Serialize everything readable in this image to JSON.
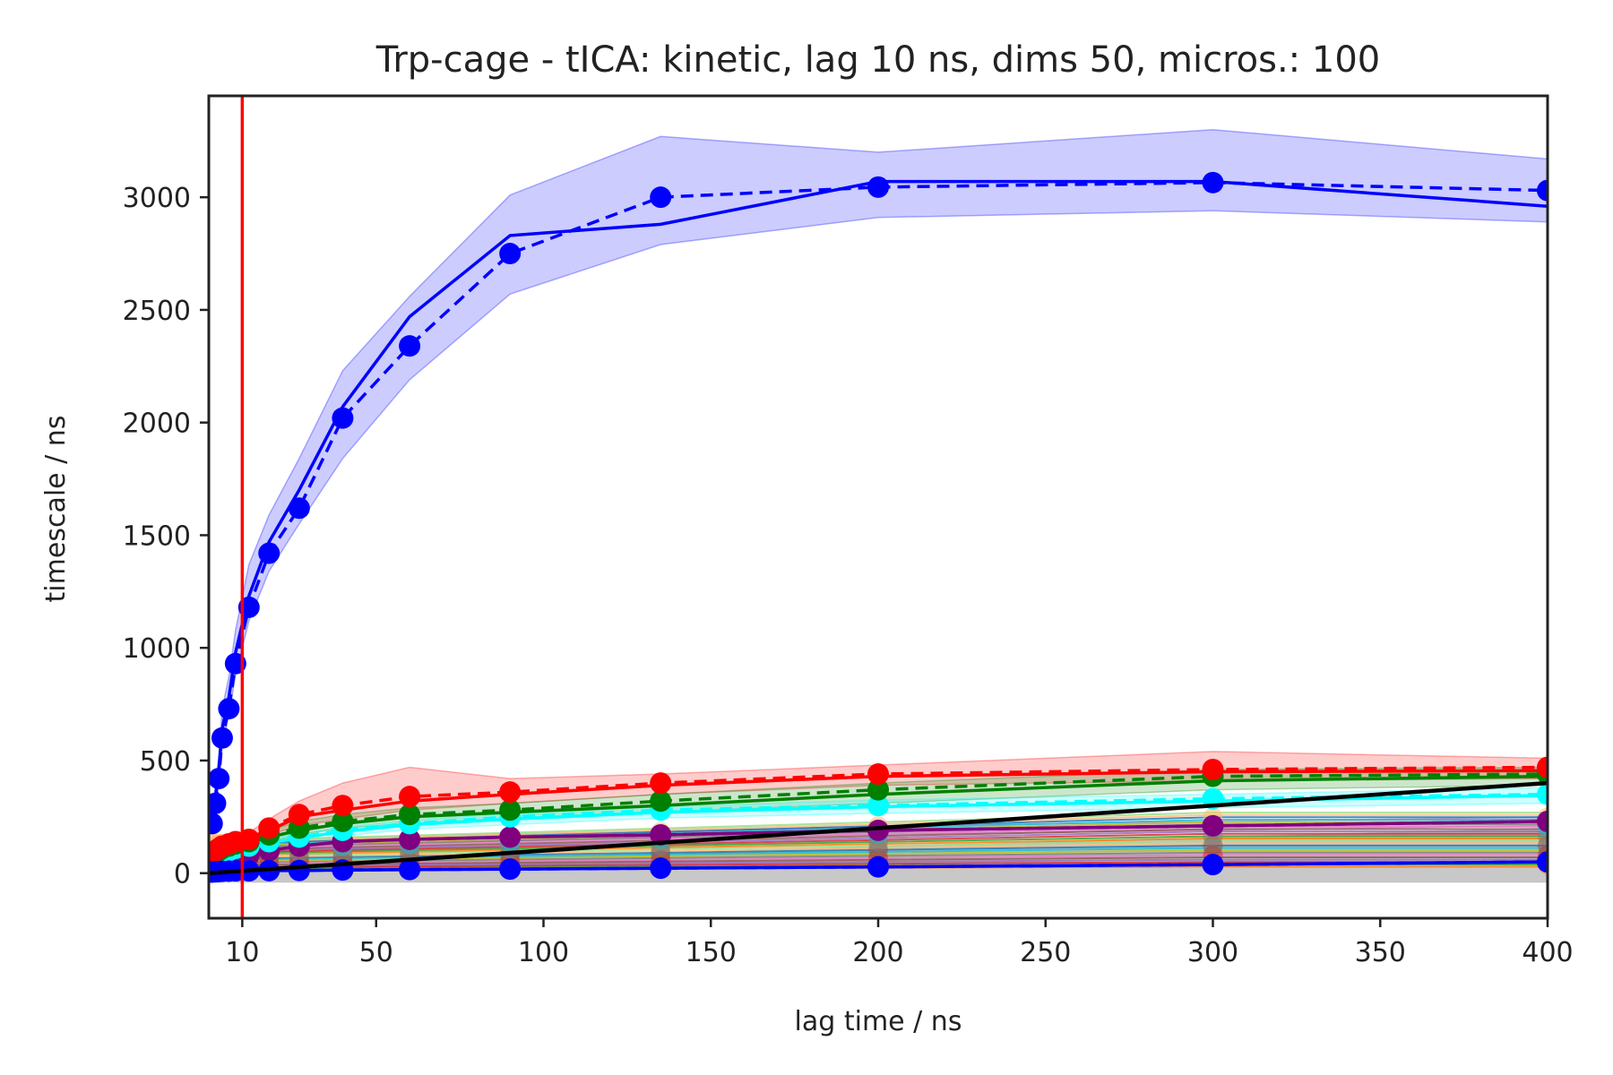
{
  "chart_data": {
    "type": "line",
    "title": "Trp-cage - tICA: kinetic, lag 10 ns, dims 50, micros.: 100",
    "xlabel": "lag time / ns",
    "ylabel": "timescale / ns",
    "xlim": [
      0,
      400
    ],
    "ylim": [
      -200,
      3450
    ],
    "x_ticks": [
      10,
      50,
      100,
      150,
      200,
      250,
      300,
      350,
      400
    ],
    "y_ticks": [
      0,
      500,
      1000,
      1500,
      2000,
      2500,
      3000
    ],
    "grid": false,
    "legend": "none",
    "lag_marker": {
      "x": 10,
      "color": "#ff0000"
    },
    "x": [
      1,
      2,
      3,
      4,
      6,
      8,
      12,
      18,
      27,
      40,
      60,
      90,
      135,
      200,
      300,
      400
    ],
    "series": [
      {
        "color": "#0000ff",
        "values": [
          220,
          310,
          420,
          600,
          730,
          930,
          1180,
          1420,
          1620,
          2020,
          2340,
          2750,
          3000,
          3045,
          3065,
          3030
        ],
        "mean_values": [
          250,
          340,
          460,
          640,
          780,
          980,
          1230,
          1470,
          1700,
          2070,
          2470,
          2830,
          2880,
          3070,
          3070,
          2960
        ],
        "band_low": [
          200,
          290,
          390,
          560,
          700,
          880,
          1120,
          1340,
          1550,
          1840,
          2190,
          2570,
          2790,
          2910,
          2940,
          2890
        ],
        "band_high": [
          300,
          390,
          520,
          730,
          870,
          1080,
          1370,
          1590,
          1840,
          2230,
          2560,
          3010,
          3270,
          3200,
          3300,
          3170
        ]
      },
      {
        "color": "#ff0000",
        "values": [
          90,
          100,
          110,
          120,
          130,
          140,
          150,
          200,
          260,
          300,
          340,
          360,
          400,
          440,
          460,
          470
        ],
        "mean_values": [
          85,
          95,
          105,
          115,
          125,
          135,
          145,
          190,
          250,
          280,
          320,
          350,
          390,
          430,
          450,
          455
        ],
        "band_low": [
          70,
          80,
          90,
          100,
          110,
          120,
          130,
          170,
          210,
          240,
          280,
          310,
          350,
          390,
          410,
          420
        ],
        "band_high": [
          110,
          120,
          130,
          140,
          150,
          160,
          180,
          240,
          320,
          400,
          470,
          420,
          440,
          480,
          540,
          510
        ]
      },
      {
        "color": "#008000",
        "values": [
          80,
          90,
          100,
          110,
          120,
          130,
          140,
          170,
          200,
          230,
          260,
          280,
          320,
          370,
          430,
          440
        ],
        "mean_values": [
          75,
          85,
          95,
          105,
          115,
          125,
          135,
          160,
          190,
          220,
          250,
          270,
          300,
          350,
          410,
          430
        ],
        "band_low": [
          60,
          70,
          80,
          90,
          100,
          110,
          120,
          140,
          170,
          200,
          220,
          240,
          270,
          310,
          370,
          390
        ],
        "band_high": [
          100,
          110,
          120,
          130,
          140,
          150,
          160,
          190,
          230,
          260,
          290,
          310,
          350,
          400,
          460,
          470
        ]
      },
      {
        "color": "#00ffff",
        "values": [
          60,
          70,
          80,
          90,
          100,
          110,
          120,
          140,
          160,
          190,
          220,
          250,
          280,
          300,
          330,
          350
        ],
        "mean_values": [
          58,
          68,
          78,
          88,
          98,
          108,
          118,
          135,
          155,
          185,
          215,
          240,
          270,
          295,
          320,
          345
        ],
        "band_low": [
          45,
          55,
          65,
          75,
          85,
          95,
          105,
          120,
          140,
          165,
          195,
          215,
          245,
          265,
          290,
          310
        ],
        "band_high": [
          75,
          85,
          95,
          105,
          115,
          125,
          135,
          155,
          175,
          205,
          235,
          265,
          295,
          325,
          350,
          380
        ]
      },
      {
        "color": "#800080",
        "values": [
          40,
          45,
          50,
          55,
          60,
          70,
          80,
          100,
          120,
          140,
          150,
          160,
          170,
          190,
          210,
          230
        ],
        "mean_values": [
          40,
          45,
          50,
          55,
          60,
          70,
          80,
          100,
          120,
          140,
          150,
          160,
          170,
          190,
          210,
          230
        ],
        "band_low": [
          30,
          35,
          40,
          45,
          50,
          60,
          70,
          85,
          105,
          125,
          135,
          145,
          155,
          170,
          190,
          210
        ],
        "band_high": [
          50,
          55,
          60,
          65,
          70,
          80,
          90,
          115,
          135,
          155,
          165,
          175,
          185,
          210,
          230,
          250
        ]
      },
      {
        "color": "#0000ff",
        "values": [
          5,
          6,
          7,
          8,
          9,
          10,
          10,
          11,
          12,
          14,
          16,
          18,
          22,
          28,
          38,
          50
        ],
        "mean_values": [
          5,
          6,
          7,
          8,
          9,
          10,
          10,
          11,
          12,
          14,
          16,
          18,
          22,
          28,
          38,
          50
        ],
        "band_low": [
          -40,
          -40,
          -40,
          -40,
          -40,
          -40,
          -40,
          -40,
          -40,
          -40,
          -40,
          -40,
          -40,
          -40,
          -40,
          -40
        ],
        "band_high": [
          20,
          20,
          20,
          20,
          22,
          24,
          26,
          30,
          36,
          45,
          55,
          70,
          90,
          120,
          160,
          200
        ],
        "band_color": "#9a9a9a"
      }
    ],
    "implied_timescale_line": {
      "color": "#000000",
      "x": [
        0,
        400
      ],
      "values": [
        0,
        400
      ]
    },
    "background_bundle_colors": [
      "#ff7f0e",
      "#2ca02c",
      "#d62728",
      "#9467bd",
      "#8c564b",
      "#e377c2",
      "#7f7f7f",
      "#bcbd22",
      "#17becf",
      "#1f77b4",
      "#ffbb78",
      "#98df8a"
    ]
  }
}
